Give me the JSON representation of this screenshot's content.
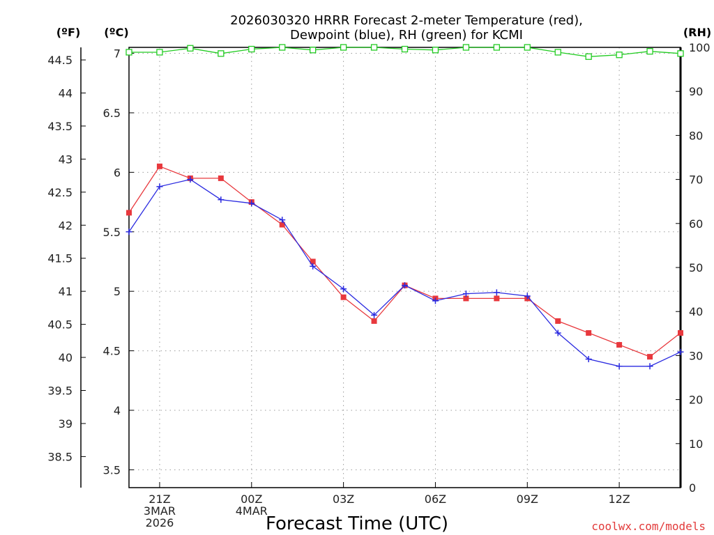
{
  "chart_data": {
    "type": "line",
    "title": [
      "2026030320 HRRR Forecast 2-meter Temperature (red),",
      "Dewpoint (blue), RH (green) for KCMI"
    ],
    "xlabel": "Forecast Time (UTC)",
    "units": {
      "left_outer": "(ºF)",
      "left_inner": "(ºC)",
      "right": "(RH)"
    },
    "credit": "coolwx.com/models",
    "x_ticks": [
      {
        "hour": 1,
        "lines": [
          "21Z",
          "3MAR",
          "2026"
        ]
      },
      {
        "hour": 4,
        "lines": [
          "00Z",
          "4MAR"
        ]
      },
      {
        "hour": 7,
        "lines": [
          "03Z"
        ]
      },
      {
        "hour": 10,
        "lines": [
          "06Z"
        ]
      },
      {
        "hour": 13,
        "lines": [
          "09Z"
        ]
      },
      {
        "hour": 16,
        "lines": [
          "12Z"
        ]
      }
    ],
    "xlim": [
      0,
      18
    ],
    "ylim_c": [
      3.35,
      7.05
    ],
    "ylim_rh": [
      0,
      100
    ],
    "ylim_f": [
      38.03,
      44.69
    ],
    "c_ticks": [
      "3.5",
      "4",
      "4.5",
      "5",
      "5.5",
      "6",
      "6.5",
      "7"
    ],
    "f_ticks": [
      "38.5",
      "39",
      "39.5",
      "40",
      "40.5",
      "41",
      "41.5",
      "42",
      "42.5",
      "43",
      "43.5",
      "44",
      "44.5"
    ],
    "rh_ticks": [
      "0",
      "10",
      "20",
      "30",
      "40",
      "50",
      "60",
      "70",
      "80",
      "90",
      "100"
    ],
    "series": [
      {
        "name": "Temperature",
        "unit": "C",
        "color": "#e8383d",
        "marker": "square",
        "values": [
          5.66,
          6.05,
          5.95,
          5.95,
          5.75,
          5.56,
          5.25,
          4.95,
          4.75,
          5.05,
          4.94,
          4.94,
          4.94,
          4.94,
          4.75,
          4.65,
          4.55,
          4.45,
          4.65
        ]
      },
      {
        "name": "Dewpoint",
        "unit": "C",
        "color": "#2a2ae0",
        "marker": "plus",
        "values": [
          5.5,
          5.88,
          5.94,
          5.77,
          5.74,
          5.6,
          5.21,
          5.02,
          4.8,
          5.05,
          4.92,
          4.98,
          4.99,
          4.96,
          4.65,
          4.43,
          4.37,
          4.37,
          4.49
        ]
      },
      {
        "name": "RH",
        "unit": "%",
        "color": "#22cc22",
        "marker": "open-square",
        "values": [
          98.9,
          98.9,
          99.8,
          98.6,
          99.6,
          100,
          99.4,
          100,
          100,
          99.6,
          99.4,
          100,
          100,
          100,
          98.9,
          97.9,
          98.3,
          99.1,
          98.6
        ]
      }
    ]
  }
}
